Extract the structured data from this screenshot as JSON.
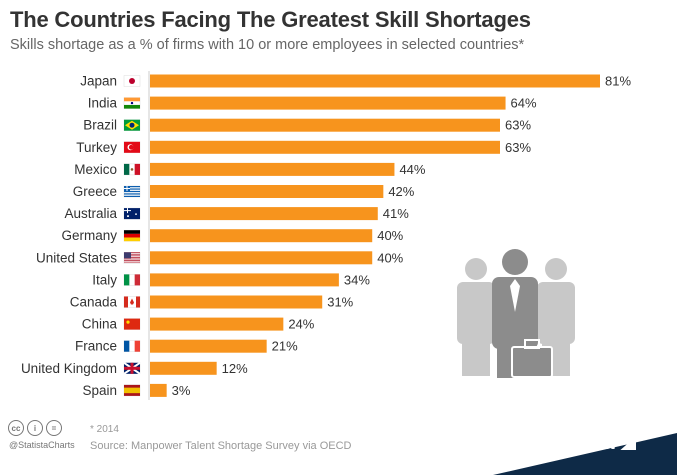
{
  "title": "The Countries Facing The Greatest Skill Shortages",
  "subtitle": "Skills shortage as a % of firms with 10 or more employees in selected countries*",
  "footer": {
    "note": "* 2014",
    "source": "Source: Manpower Talent Shortage Survey via OECD",
    "handle": "@StatistaCharts",
    "brand": "statista"
  },
  "colors": {
    "bar": "#F7941D",
    "brand_bg": "#0E2A47",
    "figure_gray": "#BDBDBD",
    "figure_dark": "#8C8C8C"
  },
  "icons": {
    "people": "business-people-icon",
    "briefcase": "briefcase-icon",
    "flags": "country-flag-icon"
  },
  "chart_data": {
    "type": "bar",
    "orientation": "horizontal",
    "categories": [
      "Japan",
      "India",
      "Brazil",
      "Turkey",
      "Mexico",
      "Greece",
      "Australia",
      "Germany",
      "United States",
      "Italy",
      "Canada",
      "China",
      "France",
      "United Kingdom",
      "Spain"
    ],
    "values": [
      81,
      64,
      63,
      63,
      44,
      42,
      41,
      40,
      40,
      34,
      31,
      24,
      21,
      12,
      3
    ],
    "data_labels": [
      "81%",
      "64%",
      "63%",
      "63%",
      "44%",
      "42%",
      "41%",
      "40%",
      "40%",
      "34%",
      "31%",
      "24%",
      "21%",
      "12%",
      "3%"
    ],
    "xlim": [
      0,
      81
    ],
    "grid": false,
    "legend": "none"
  }
}
